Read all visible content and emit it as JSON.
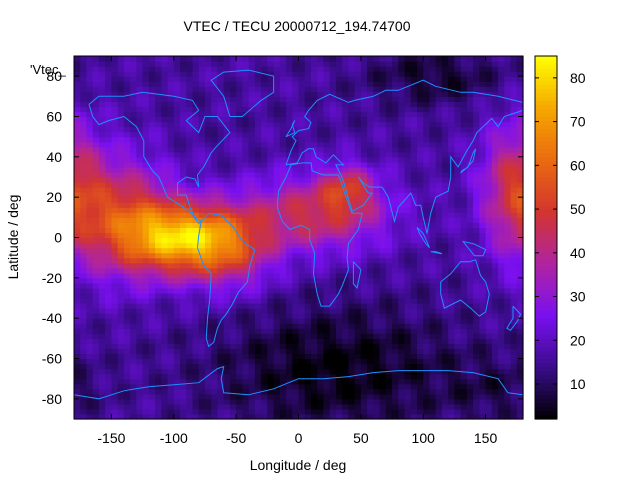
{
  "chart_data": {
    "type": "heatmap",
    "title": "VTEC / TECU 20000712_194.74700",
    "xlabel": "Longitude / deg",
    "ylabel": "Latitude / deg",
    "key_label": "'Vtec_",
    "xlim": [
      -180,
      180
    ],
    "ylim": [
      -90,
      90
    ],
    "x_ticks": [
      -150,
      -100,
      -50,
      0,
      50,
      100,
      150
    ],
    "y_ticks": [
      -80,
      -60,
      -40,
      -20,
      0,
      20,
      40,
      60,
      80
    ],
    "colorbar_ticks": [
      10,
      20,
      30,
      40,
      50,
      60,
      70,
      80
    ],
    "zlim": [
      2,
      85
    ],
    "grid": false,
    "colormap": [
      "#000000",
      "#3a0c8a",
      "#7a10f0",
      "#b024a0",
      "#d2352e",
      "#ea6a10",
      "#f6a700",
      "#ffff00"
    ],
    "coastline_color": "#1e90ff",
    "field_summary": [
      {
        "region": "equatorial anomaly, eastern Pacific / South America",
        "lon": [
          -150,
          -60
        ],
        "lat": [
          -20,
          20
        ],
        "vtec": 65
      },
      {
        "region": "Atlantic / Africa",
        "lon": [
          -40,
          60
        ],
        "lat": [
          -5,
          25
        ],
        "vtec": 50
      },
      {
        "region": "western Pacific",
        "lon": [
          150,
          180
        ],
        "lat": [
          0,
          40
        ],
        "vtec": 50
      },
      {
        "region": "southern Indian Ocean / Antarctica",
        "lon": [
          -40,
          120
        ],
        "lat": [
          -90,
          -30
        ],
        "vtec": 5
      }
    ]
  }
}
